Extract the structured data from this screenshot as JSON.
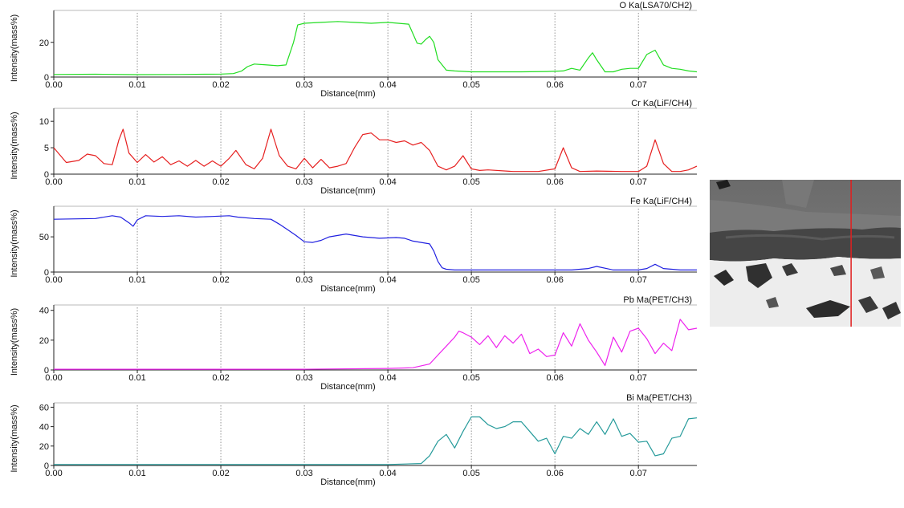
{
  "x_axis": {
    "label": "Distance(mm)",
    "xlim": [
      0,
      0.077
    ],
    "ticks": [
      "0.00",
      "0.01",
      "0.02",
      "0.03",
      "0.04",
      "0.05",
      "0.06",
      "0.07"
    ]
  },
  "y_axis_label": "Intensity(mass%)",
  "chart_data": [
    {
      "type": "line",
      "title": "O Ka(LSA70/CH2)",
      "color": "#22dd22",
      "ylim": [
        0,
        37
      ],
      "yticks": [
        "0",
        "20"
      ],
      "ytick_values": [
        0,
        20
      ],
      "x": [
        0,
        0.005,
        0.01,
        0.015,
        0.02,
        0.0215,
        0.0225,
        0.0232,
        0.024,
        0.0255,
        0.0268,
        0.0278,
        0.0287,
        0.0292,
        0.03,
        0.032,
        0.034,
        0.036,
        0.038,
        0.04,
        0.0425,
        0.043,
        0.0435,
        0.044,
        0.0445,
        0.045,
        0.0455,
        0.046,
        0.047,
        0.048,
        0.05,
        0.053,
        0.056,
        0.059,
        0.061,
        0.062,
        0.063,
        0.064,
        0.0645,
        0.065,
        0.066,
        0.067,
        0.068,
        0.069,
        0.07,
        0.071,
        0.072,
        0.073,
        0.074,
        0.075,
        0.076,
        0.077
      ],
      "y": [
        1.5,
        1.6,
        1.4,
        1.5,
        1.7,
        2.0,
        3.5,
        6.0,
        7.5,
        7.0,
        6.5,
        7.0,
        20.0,
        30.0,
        31.0,
        31.5,
        32.0,
        31.5,
        31.0,
        31.5,
        30.5,
        25.0,
        19.5,
        19.0,
        21.5,
        23.5,
        20.0,
        10.0,
        4.0,
        3.5,
        3.0,
        3.0,
        3.0,
        3.2,
        3.5,
        5.0,
        4.0,
        11.0,
        14.0,
        10.0,
        3.0,
        3.0,
        4.5,
        5.0,
        5.0,
        13.0,
        15.5,
        7.0,
        5.0,
        4.5,
        3.5,
        3.0
      ]
    },
    {
      "type": "line",
      "title": "Cr Ka(LiF/CH4)",
      "color": "#e62020",
      "ylim": [
        0,
        12
      ],
      "yticks": [
        "0",
        "5",
        "10"
      ],
      "ytick_values": [
        0,
        5,
        10
      ],
      "x": [
        0,
        0.0015,
        0.003,
        0.004,
        0.005,
        0.006,
        0.007,
        0.0078,
        0.0083,
        0.009,
        0.01,
        0.011,
        0.012,
        0.013,
        0.014,
        0.015,
        0.016,
        0.017,
        0.018,
        0.019,
        0.02,
        0.021,
        0.0218,
        0.023,
        0.024,
        0.025,
        0.026,
        0.027,
        0.028,
        0.029,
        0.03,
        0.031,
        0.032,
        0.033,
        0.034,
        0.035,
        0.036,
        0.037,
        0.038,
        0.039,
        0.04,
        0.041,
        0.042,
        0.043,
        0.044,
        0.045,
        0.046,
        0.047,
        0.048,
        0.049,
        0.05,
        0.051,
        0.052,
        0.055,
        0.058,
        0.06,
        0.061,
        0.062,
        0.063,
        0.065,
        0.068,
        0.07,
        0.071,
        0.072,
        0.073,
        0.074,
        0.075,
        0.076,
        0.077
      ],
      "y": [
        5.0,
        2.2,
        2.6,
        3.8,
        3.5,
        2.0,
        1.8,
        6.5,
        8.5,
        4.0,
        2.2,
        3.7,
        2.3,
        3.3,
        1.8,
        2.5,
        1.5,
        2.6,
        1.5,
        2.5,
        1.5,
        3.0,
        4.5,
        1.8,
        1.0,
        3.0,
        8.5,
        3.5,
        1.5,
        1.0,
        3.0,
        1.2,
        2.8,
        1.2,
        1.5,
        2.0,
        5.0,
        7.5,
        7.8,
        6.5,
        6.5,
        6.0,
        6.3,
        5.5,
        6.0,
        4.5,
        1.5,
        0.8,
        1.5,
        3.5,
        1.0,
        0.7,
        0.8,
        0.5,
        0.5,
        1.0,
        5.0,
        1.2,
        0.5,
        0.6,
        0.5,
        0.5,
        1.5,
        6.5,
        2.0,
        0.5,
        0.5,
        0.8,
        1.5
      ]
    },
    {
      "type": "line",
      "title": "Fe Ka(LiF/CH4)",
      "color": "#2020e0",
      "ylim": [
        0,
        90
      ],
      "yticks": [
        "0",
        "50"
      ],
      "ytick_values": [
        0,
        50
      ],
      "x": [
        0,
        0.005,
        0.007,
        0.008,
        0.009,
        0.0095,
        0.01,
        0.011,
        0.013,
        0.015,
        0.017,
        0.019,
        0.021,
        0.022,
        0.024,
        0.026,
        0.027,
        0.028,
        0.029,
        0.03,
        0.031,
        0.032,
        0.033,
        0.034,
        0.035,
        0.037,
        0.039,
        0.041,
        0.042,
        0.043,
        0.044,
        0.045,
        0.0455,
        0.046,
        0.0465,
        0.047,
        0.048,
        0.05,
        0.055,
        0.06,
        0.062,
        0.064,
        0.065,
        0.067,
        0.07,
        0.071,
        0.072,
        0.073,
        0.075,
        0.077
      ],
      "y": [
        75,
        76,
        80,
        78,
        70,
        65,
        74,
        80,
        79,
        80,
        78,
        79,
        80,
        78,
        76,
        75,
        68,
        60,
        52,
        43,
        42,
        45,
        50,
        52,
        54,
        50,
        48,
        49,
        48,
        44,
        42,
        40,
        30,
        15,
        6,
        4,
        3,
        3,
        3,
        3,
        3,
        5,
        8,
        3,
        3,
        5,
        11,
        5,
        3,
        3
      ]
    },
    {
      "type": "line",
      "title": "Pb Ma(PET/CH3)",
      "color": "#ee22ee",
      "ylim": [
        0,
        42
      ],
      "yticks": [
        "0",
        "20",
        "40"
      ],
      "ytick_values": [
        0,
        20,
        40
      ],
      "x": [
        0,
        0.01,
        0.02,
        0.03,
        0.04,
        0.043,
        0.045,
        0.046,
        0.047,
        0.048,
        0.0485,
        0.049,
        0.05,
        0.051,
        0.052,
        0.053,
        0.054,
        0.055,
        0.056,
        0.057,
        0.058,
        0.059,
        0.06,
        0.061,
        0.062,
        0.063,
        0.064,
        0.065,
        0.066,
        0.067,
        0.068,
        0.069,
        0.07,
        0.071,
        0.072,
        0.073,
        0.074,
        0.075,
        0.076,
        0.077
      ],
      "y": [
        0.5,
        0.5,
        0.5,
        0.5,
        1.0,
        1.5,
        4.0,
        10.0,
        16.0,
        22.0,
        26.0,
        25.0,
        22.0,
        17.0,
        23.0,
        15.0,
        23.0,
        18.0,
        24.0,
        11.0,
        14.0,
        9.0,
        10.0,
        25.0,
        16.0,
        31.0,
        20.0,
        12.0,
        3.0,
        22.0,
        12.0,
        26.0,
        28.0,
        21.0,
        11.0,
        18.0,
        13.0,
        34.0,
        27.0,
        28.0
      ]
    },
    {
      "type": "line",
      "title": "Bi Ma(PET/CH3)",
      "color": "#259a9a",
      "ylim": [
        0,
        62
      ],
      "yticks": [
        "0",
        "20",
        "40",
        "60"
      ],
      "ytick_values": [
        0,
        20,
        40,
        60
      ],
      "x": [
        0,
        0.01,
        0.02,
        0.03,
        0.04,
        0.044,
        0.045,
        0.046,
        0.047,
        0.048,
        0.049,
        0.05,
        0.051,
        0.052,
        0.053,
        0.054,
        0.055,
        0.056,
        0.057,
        0.058,
        0.059,
        0.06,
        0.061,
        0.062,
        0.063,
        0.064,
        0.065,
        0.066,
        0.067,
        0.068,
        0.069,
        0.07,
        0.071,
        0.072,
        0.073,
        0.074,
        0.075,
        0.076,
        0.077
      ],
      "y": [
        1.0,
        1.0,
        1.0,
        1.0,
        1.0,
        2.0,
        10.0,
        25.0,
        32.0,
        18.0,
        35.0,
        50.0,
        50.0,
        42.0,
        38.0,
        40.0,
        45.0,
        45.0,
        35.0,
        25.0,
        28.0,
        12.0,
        30.0,
        28.0,
        38.0,
        32.0,
        45.0,
        32.0,
        48.0,
        30.0,
        33.0,
        24.0,
        25.0,
        10.0,
        12.0,
        28.0,
        30.0,
        48.0,
        49.0
      ]
    }
  ],
  "micrograph": {
    "kind": "SEM backscatter image with scan line",
    "scan_line_color": "#e11f1f",
    "scan_line_position": 0.74
  }
}
